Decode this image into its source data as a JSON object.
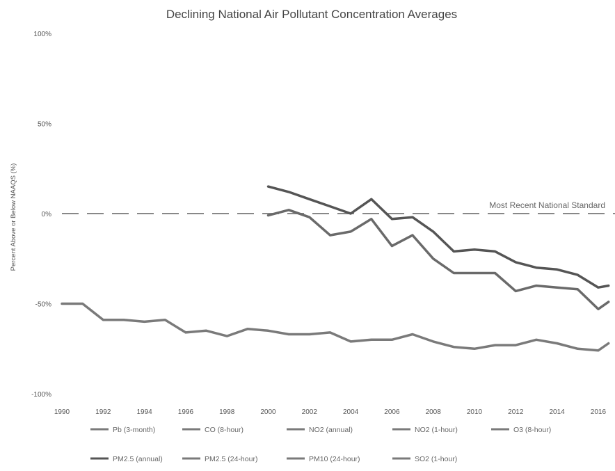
{
  "chart_data": {
    "type": "line",
    "title": "Declining National Air Pollutant Concentration Averages",
    "xlabel": "",
    "ylabel": "Percent Above or Below NAAQS (%)",
    "xlim": [
      1990,
      2016.5
    ],
    "ylim": [
      -100,
      100
    ],
    "x_ticks": [
      1990,
      1992,
      1994,
      1996,
      1998,
      2000,
      2002,
      2004,
      2006,
      2008,
      2010,
      2012,
      2014,
      2016
    ],
    "y_ticks": [
      {
        "value": 100,
        "label": "100%"
      },
      {
        "value": 50,
        "label": "50%"
      },
      {
        "value": 0,
        "label": "0%"
      },
      {
        "value": -50,
        "label": "-50%"
      },
      {
        "value": -100,
        "label": "-100%"
      }
    ],
    "grid": false,
    "legend_position": "bottom",
    "reference_line": {
      "value": 0,
      "label": "Most Recent National Standard",
      "style": "dashed"
    },
    "series": [
      {
        "name": "Pb (3-month)",
        "color": "#7a7a7a",
        "x": [
          1990,
          1991,
          1992,
          1993,
          1994,
          1995,
          1996,
          1997,
          1998,
          1999,
          2000,
          2001,
          2002,
          2003,
          2004,
          2005,
          2006,
          2007,
          2008,
          2009,
          2010,
          2011,
          2012,
          2013,
          2014,
          2015,
          2016,
          2016.5
        ],
        "values": [
          -50,
          -50,
          -59,
          -59,
          -60,
          -59,
          -66,
          -65,
          -68,
          -64,
          -65,
          -67,
          -67,
          -66,
          -71,
          -70,
          -70,
          -67,
          -71,
          -74,
          -75,
          -73,
          -73,
          -70,
          -72,
          -75,
          -76,
          -72
        ]
      },
      {
        "name": "NO2 (1-hour)",
        "color": "#6a6a6a",
        "x": [
          2000,
          2001,
          2002,
          2003,
          2004,
          2005,
          2006,
          2007,
          2008,
          2009,
          2010,
          2011,
          2012,
          2013,
          2014,
          2015,
          2016,
          2016.5
        ],
        "values": [
          -1,
          2,
          -2,
          -12,
          -10,
          -3,
          -18,
          -12,
          -25,
          -33,
          -33,
          -33,
          -43,
          -40,
          -41,
          -42,
          -53,
          -49
        ]
      },
      {
        "name": "PM2.5 (annual)",
        "color": "#555555",
        "x": [
          2000,
          2001,
          2002,
          2003,
          2004,
          2005,
          2006,
          2007,
          2008,
          2009,
          2010,
          2011,
          2012,
          2013,
          2014,
          2015,
          2016,
          2016.5
        ],
        "values": [
          15,
          12,
          8,
          4,
          0,
          8,
          -3,
          -2,
          -10,
          -21,
          -20,
          -21,
          -27,
          -30,
          -31,
          -34,
          -41,
          -40
        ]
      }
    ]
  },
  "legend": {
    "rows": [
      [
        "Pb (3-month)",
        "CO (8-hour)",
        "NO2 (annual)",
        "NO2 (1-hour)",
        "O3 (8-hour)"
      ],
      [
        "PM2.5 (annual)",
        "PM2.5 (24-hour)",
        "PM10 (24-hour)",
        "SO2 (1-hour)"
      ]
    ],
    "swatch_color": "#7a7a7a"
  }
}
